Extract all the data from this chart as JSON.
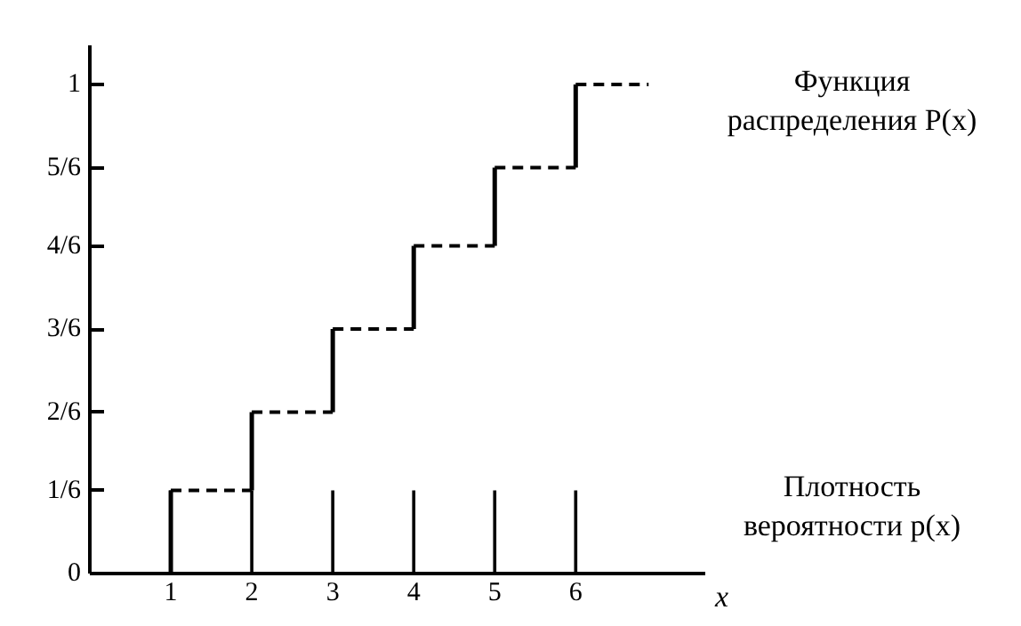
{
  "chart_data": {
    "type": "step",
    "xlabel": "x",
    "xlim": [
      0,
      7.6
    ],
    "xticks": [
      1,
      2,
      3,
      4,
      5,
      6
    ],
    "ylim": [
      0,
      1.08
    ],
    "yticks": [
      0,
      {
        "value": 0.17,
        "label": "1/6"
      },
      {
        "value": 0.33,
        "label": "2/6"
      },
      {
        "value": 0.5,
        "label": "3/6"
      },
      {
        "value": 0.67,
        "label": "4/6"
      },
      {
        "value": 0.83,
        "label": "5/6"
      },
      1
    ],
    "x": [
      1,
      2,
      3,
      4,
      5,
      6
    ],
    "grid": false,
    "legend": false,
    "series": [
      {
        "name": "Функция распределения P(x)",
        "line_style": "dashed",
        "color": "#000000",
        "x": [
          1,
          2,
          3,
          4,
          5,
          6,
          6.9
        ],
        "values": [
          0.17,
          0.33,
          0.5,
          0.67,
          0.83,
          1,
          1
        ]
      },
      {
        "name": "Плотность вероятности p(x)",
        "type": "bar",
        "color": "#000000",
        "values": [
          0.17,
          0.17,
          0.17,
          0.17,
          0.17,
          0.17
        ]
      }
    ]
  }
}
